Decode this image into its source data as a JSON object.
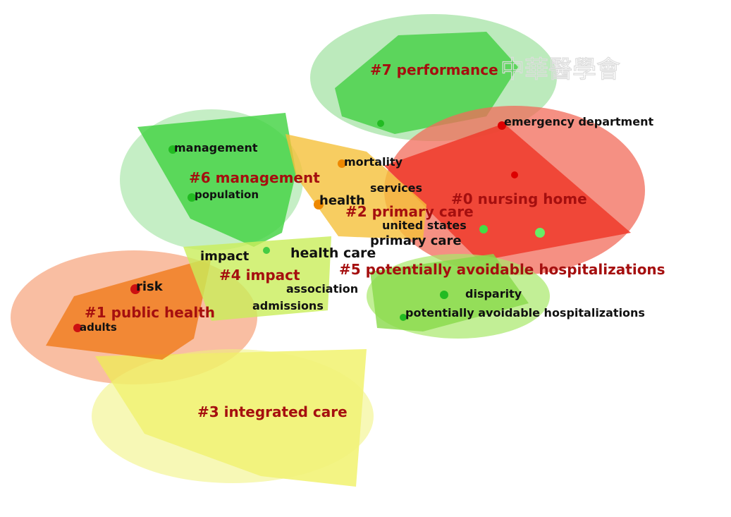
{
  "watermark": "中華醫學會",
  "clusters": [
    {
      "label": "#0 nursing home"
    },
    {
      "label": "#1 public health"
    },
    {
      "label": "#2 primary care"
    },
    {
      "label": "#3 integrated care"
    },
    {
      "label": "#4 impact"
    },
    {
      "label": "#5 potentially avoidable hospitalizations"
    },
    {
      "label": "#6 management"
    },
    {
      "label": "#7 performance"
    }
  ],
  "keywords": [
    "emergency department",
    "management",
    "mortality",
    "population",
    "services",
    "health",
    "united states",
    "primary care",
    "impact",
    "health care",
    "risk",
    "association",
    "admissions",
    "disparity",
    "potentially avoidable hospitalizations",
    "adults"
  ]
}
